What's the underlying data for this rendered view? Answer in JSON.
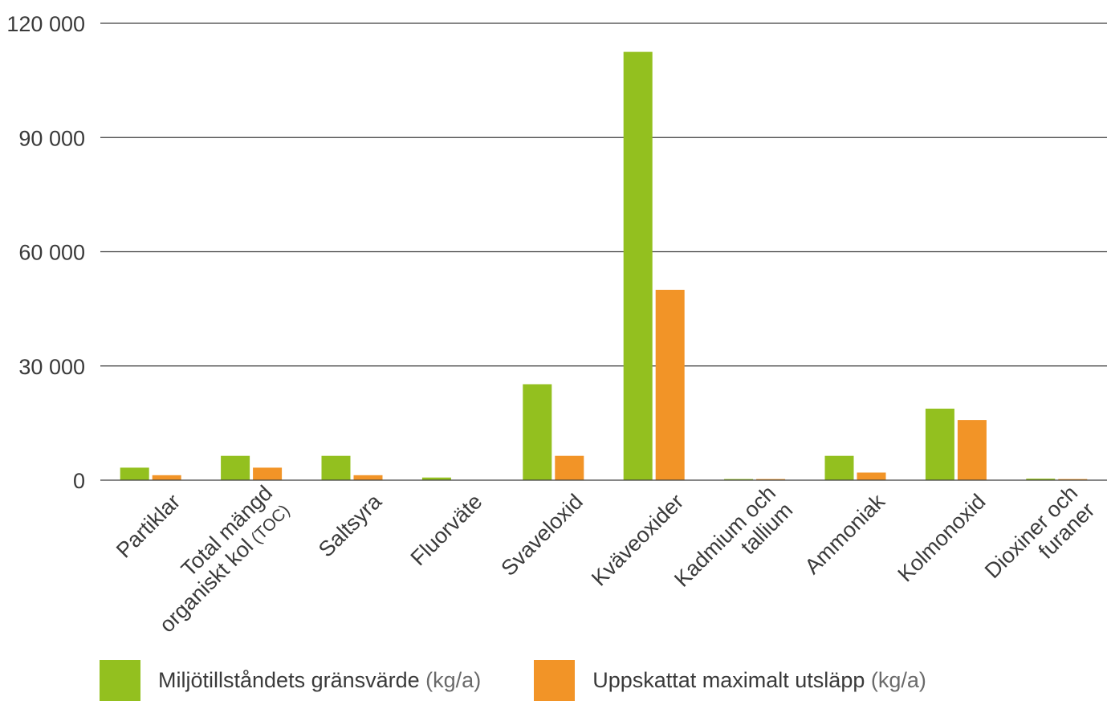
{
  "chart_data": {
    "type": "bar",
    "categories": [
      [
        "Partiklar"
      ],
      [
        "Total mängd",
        "organiskt kol (TOC)"
      ],
      [
        "Saltsyra"
      ],
      [
        "Fluorväte"
      ],
      [
        "Svaveloxid"
      ],
      [
        "Kväveoxider"
      ],
      [
        "Kadmium och",
        "tallium"
      ],
      [
        "Ammoniak"
      ],
      [
        "Kolmonoxid"
      ],
      [
        "Dioxiner och",
        "furaner"
      ]
    ],
    "series": [
      {
        "name": "Miljötillståndets gränsvärde (kg/a)",
        "color": "#93c01f",
        "values": [
          3300,
          6400,
          6400,
          700,
          25200,
          112500,
          300,
          6400,
          18800,
          400
        ]
      },
      {
        "name": "Uppskattat maximalt utsläpp (kg/a)",
        "color": "#f29427",
        "values": [
          1300,
          3300,
          1300,
          0,
          6400,
          50000,
          300,
          2000,
          15800,
          300
        ]
      }
    ],
    "yticks": [
      "0",
      "30 000",
      "60 000",
      "90 000",
      "120 000"
    ],
    "ytick_values": [
      0,
      30000,
      60000,
      90000,
      120000
    ],
    "ylim": [
      0,
      120000
    ],
    "grid": true,
    "legend_position": "bottom",
    "xlabel": "",
    "ylabel": ""
  },
  "legend": {
    "items": [
      {
        "label": "Miljötillståndets gränsvärde",
        "unit": "(kg/a)",
        "color": "#93c01f"
      },
      {
        "label": "Uppskattat maximalt utsläpp",
        "unit": "(kg/a)",
        "color": "#f29427"
      }
    ]
  }
}
